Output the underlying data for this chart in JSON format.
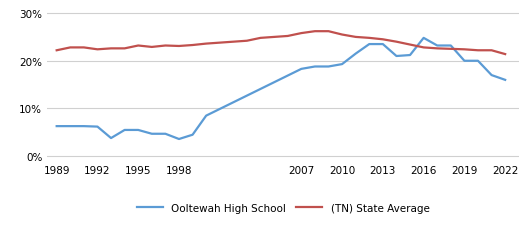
{
  "ooltewah_years": [
    1989,
    1990,
    1991,
    1992,
    1993,
    1994,
    1995,
    1996,
    1997,
    1998,
    1999,
    2000,
    2007,
    2008,
    2009,
    2010,
    2011,
    2012,
    2013,
    2014,
    2015,
    2016,
    2017,
    2018,
    2019,
    2020,
    2021,
    2022
  ],
  "ooltewah_values": [
    0.063,
    0.063,
    0.063,
    0.062,
    0.038,
    0.055,
    0.055,
    0.047,
    0.047,
    0.036,
    0.045,
    0.085,
    0.183,
    0.188,
    0.188,
    0.193,
    0.215,
    0.235,
    0.235,
    0.21,
    0.212,
    0.248,
    0.232,
    0.232,
    0.2,
    0.2,
    0.17,
    0.16
  ],
  "tn_years": [
    1989,
    1990,
    1991,
    1992,
    1993,
    1994,
    1995,
    1996,
    1997,
    1998,
    1999,
    2000,
    2001,
    2002,
    2003,
    2004,
    2005,
    2006,
    2007,
    2008,
    2009,
    2010,
    2011,
    2012,
    2013,
    2014,
    2015,
    2016,
    2017,
    2018,
    2019,
    2020,
    2021,
    2022
  ],
  "tn_values": [
    0.222,
    0.228,
    0.228,
    0.224,
    0.226,
    0.226,
    0.232,
    0.229,
    0.232,
    0.231,
    0.233,
    0.236,
    0.238,
    0.24,
    0.242,
    0.248,
    0.25,
    0.252,
    0.258,
    0.262,
    0.262,
    0.255,
    0.25,
    0.248,
    0.245,
    0.24,
    0.234,
    0.228,
    0.226,
    0.225,
    0.224,
    0.222,
    0.222,
    0.214
  ],
  "ooltewah_color": "#5b9bd5",
  "tn_color": "#c0504d",
  "ooltewah_label": "Ooltewah High School",
  "tn_label": "(TN) State Average",
  "yticks": [
    0.0,
    0.1,
    0.2,
    0.3
  ],
  "ylim": [
    -0.008,
    0.315
  ],
  "xticks": [
    1989,
    1992,
    1995,
    1998,
    2007,
    2010,
    2013,
    2016,
    2019,
    2022
  ],
  "xlim": [
    1988.3,
    2023.0
  ],
  "bg_color": "#ffffff",
  "grid_color": "#d0d0d0",
  "line_width": 1.6
}
